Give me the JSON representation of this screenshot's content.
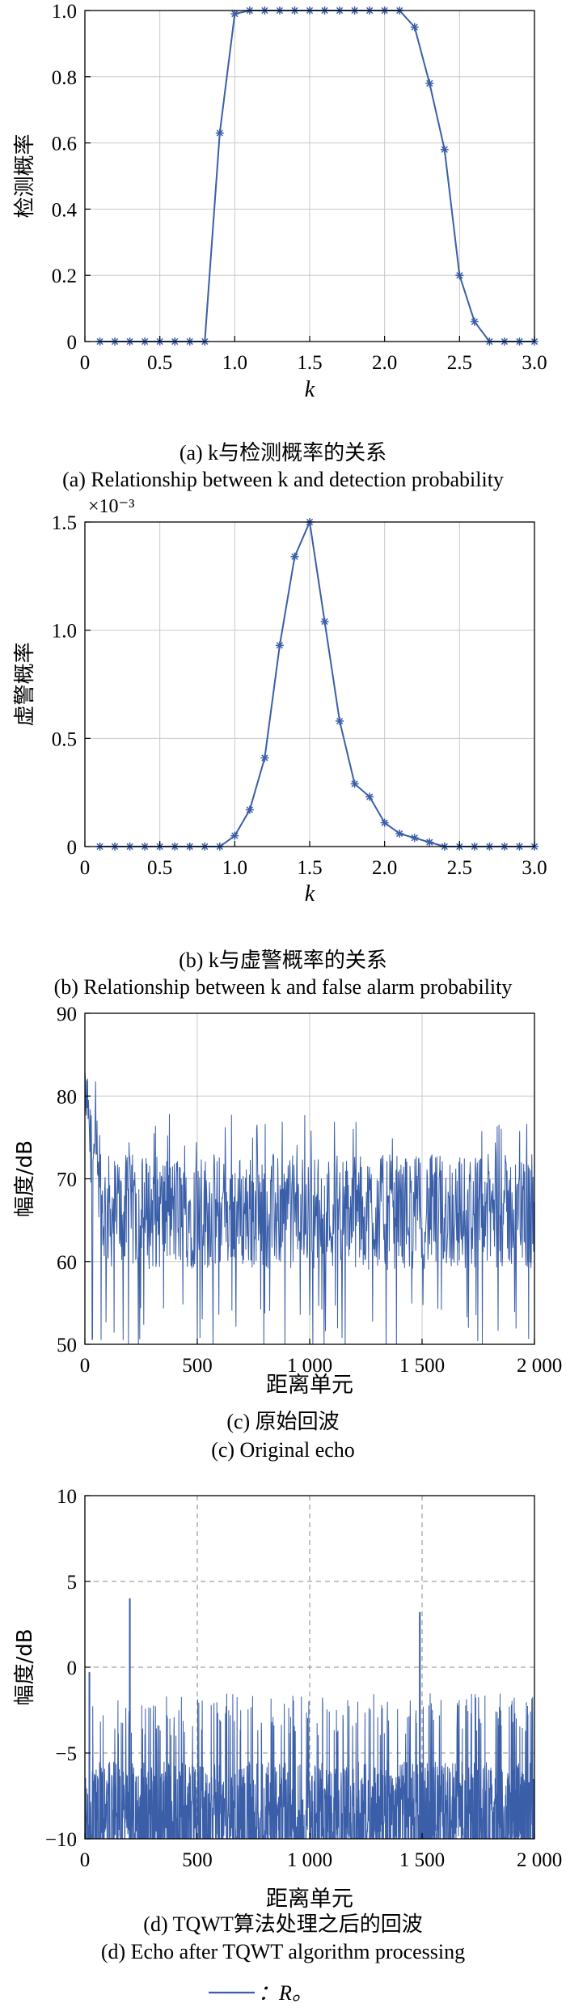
{
  "figure": {
    "legend_text": "：R。",
    "legend_color": "#3a5ea8"
  },
  "chart_data": [
    {
      "id": "a",
      "type": "line",
      "marker": "asterisk",
      "xlabel": "k",
      "ylabel": "检测概率",
      "xlim": [
        0,
        3.0
      ],
      "ylim": [
        0,
        1.0
      ],
      "xticks": [
        0,
        0.5,
        1.0,
        1.5,
        2.0,
        2.5,
        3.0
      ],
      "xtick_labels": [
        "0",
        "0.5",
        "1.0",
        "1.5",
        "2.0",
        "2.5",
        "3.0"
      ],
      "yticks": [
        0,
        0.2,
        0.4,
        0.6,
        0.8,
        1.0
      ],
      "ytick_labels": [
        "0",
        "0.2",
        "0.4",
        "0.6",
        "0.8",
        "1.0"
      ],
      "grid": "solid",
      "caption_cn": "(a) k与检测概率的关系",
      "caption_en": "(a) Relationship between k and detection probability",
      "series": [
        {
          "x": [
            0.1,
            0.2,
            0.3,
            0.4,
            0.5,
            0.6,
            0.7,
            0.8,
            0.9,
            1.0,
            1.1,
            1.2,
            1.3,
            1.4,
            1.5,
            1.6,
            1.7,
            1.8,
            1.9,
            2.0,
            2.1,
            2.2,
            2.3,
            2.4,
            2.5,
            2.6,
            2.7,
            2.8,
            2.9,
            3.0
          ],
          "y": [
            0,
            0,
            0,
            0,
            0,
            0,
            0,
            0,
            0.63,
            0.99,
            1.0,
            1.0,
            1.0,
            1.0,
            1.0,
            1.0,
            1.0,
            1.0,
            1.0,
            1.0,
            1.0,
            0.95,
            0.78,
            0.58,
            0.2,
            0.06,
            0,
            0,
            0,
            0
          ]
        }
      ]
    },
    {
      "id": "b",
      "type": "line",
      "marker": "asterisk",
      "xlabel": "k",
      "ylabel": "虚警概率",
      "exponent": "×10⁻³",
      "xlim": [
        0,
        3.0
      ],
      "ylim": [
        0,
        1.5
      ],
      "xticks": [
        0,
        0.5,
        1.0,
        1.5,
        2.0,
        2.5,
        3.0
      ],
      "xtick_labels": [
        "0",
        "0.5",
        "1.0",
        "1.5",
        "2.0",
        "2.5",
        "3.0"
      ],
      "yticks": [
        0,
        0.5,
        1.0,
        1.5
      ],
      "ytick_labels": [
        "0",
        "0.5",
        "1.0",
        "1.5"
      ],
      "grid": "solid",
      "caption_cn": "(b) k与虚警概率的关系",
      "caption_en": "(b) Relationship between k and false alarm probability",
      "series": [
        {
          "x": [
            0.1,
            0.2,
            0.3,
            0.4,
            0.5,
            0.6,
            0.7,
            0.8,
            0.9,
            1.0,
            1.1,
            1.2,
            1.3,
            1.4,
            1.5,
            1.6,
            1.7,
            1.8,
            1.9,
            2.0,
            2.1,
            2.2,
            2.3,
            2.4,
            2.5,
            2.6,
            2.7,
            2.8,
            2.9,
            3.0
          ],
          "y": [
            0,
            0,
            0,
            0,
            0,
            0,
            0,
            0,
            0,
            0.05,
            0.17,
            0.41,
            0.93,
            1.34,
            1.5,
            1.04,
            0.58,
            0.29,
            0.23,
            0.11,
            0.06,
            0.04,
            0.02,
            0,
            0,
            0,
            0,
            0,
            0,
            0
          ]
        }
      ]
    },
    {
      "id": "c",
      "type": "line",
      "xlabel": "距离单元",
      "ylabel": "幅度/dB",
      "xlim": [
        0,
        2000
      ],
      "ylim": [
        50,
        90
      ],
      "xticks": [
        0,
        500,
        1000,
        1500,
        2000
      ],
      "xtick_labels": [
        "0",
        "500",
        "1 000",
        "1 500",
        "2 000"
      ],
      "yticks": [
        50,
        60,
        70,
        80,
        90
      ],
      "ytick_labels": [
        "50",
        "60",
        "70",
        "80",
        "90"
      ],
      "grid": "solid",
      "caption_cn": "(c) 原始回波",
      "caption_en": "(c) Original echo",
      "signal": {
        "samples": 2000,
        "mean_dB": 66,
        "spread_dB": 7,
        "start_level_dB": 80,
        "min_dB": 50,
        "max_dB": 83
      }
    },
    {
      "id": "d",
      "type": "line",
      "xlabel": "距离单元",
      "ylabel": "幅度/dB",
      "xlim": [
        0,
        2000
      ],
      "ylim": [
        -10,
        10
      ],
      "xticks": [
        0,
        500,
        1000,
        1500,
        2000
      ],
      "xtick_labels": [
        "0",
        "500",
        "1 000",
        "1 500",
        "2 000"
      ],
      "yticks": [
        -10,
        -5,
        0,
        5,
        10
      ],
      "ytick_labels": [
        "−10",
        "−5",
        "0",
        "5",
        "10"
      ],
      "grid": "dashed",
      "caption_cn": "(d) TQWT算法处理之后的回波",
      "caption_en": "(d) Echo after TQWT algorithm processing",
      "signal": {
        "samples": 2000,
        "floor_dB": -10,
        "mean_dB": -6.5,
        "max_noise_dB": -1.5
      },
      "peaks": [
        {
          "x": 200,
          "y": 4.0
        },
        {
          "x": 1490,
          "y": 3.2
        },
        {
          "x": 20,
          "y": -0.3
        }
      ]
    }
  ]
}
